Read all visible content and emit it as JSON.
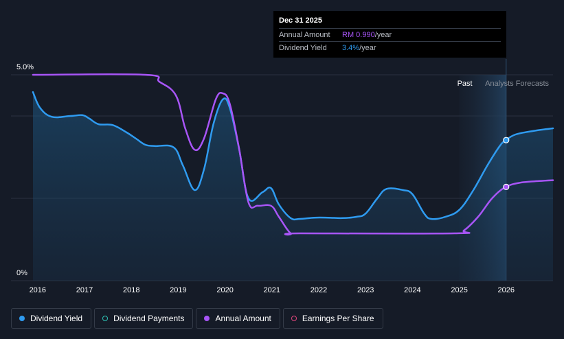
{
  "chart_data": {
    "type": "line",
    "x_axis": {
      "min": 2015.9,
      "max": 2027.0,
      "ticks": [
        "2016",
        "2017",
        "2018",
        "2019",
        "2020",
        "2021",
        "2022",
        "2023",
        "2024",
        "2025",
        "2026"
      ]
    },
    "y_axis": {
      "min": 0,
      "max": 5.0,
      "tick_labels": [
        {
          "value": 5.0,
          "label": "5.0%"
        },
        {
          "value": 0,
          "label": "0%"
        }
      ]
    },
    "regions": {
      "past_label": "Past",
      "forecast_label": "Analysts Forecasts",
      "forecast_start": 2025.0,
      "forecast_marker": 2026.0
    },
    "series": [
      {
        "name": "Dividend Yield",
        "color": "#2f9bf0",
        "filled": true,
        "points": [
          [
            2015.9,
            4.58
          ],
          [
            2016.05,
            4.2
          ],
          [
            2016.3,
            3.98
          ],
          [
            2016.7,
            4.0
          ],
          [
            2016.95,
            4.02
          ],
          [
            2017.1,
            3.94
          ],
          [
            2017.3,
            3.8
          ],
          [
            2017.6,
            3.78
          ],
          [
            2017.9,
            3.6
          ],
          [
            2018.1,
            3.45
          ],
          [
            2018.3,
            3.3
          ],
          [
            2018.5,
            3.27
          ],
          [
            2018.9,
            3.24
          ],
          [
            2019.1,
            2.8
          ],
          [
            2019.35,
            2.2
          ],
          [
            2019.55,
            2.7
          ],
          [
            2019.75,
            3.8
          ],
          [
            2019.95,
            4.4
          ],
          [
            2020.1,
            4.2
          ],
          [
            2020.3,
            3.2
          ],
          [
            2020.5,
            2.0
          ],
          [
            2020.8,
            2.15
          ],
          [
            2020.98,
            2.25
          ],
          [
            2021.15,
            1.85
          ],
          [
            2021.4,
            1.52
          ],
          [
            2021.6,
            1.5
          ],
          [
            2021.9,
            1.53
          ],
          [
            2022.2,
            1.53
          ],
          [
            2022.5,
            1.52
          ],
          [
            2022.8,
            1.55
          ],
          [
            2023.0,
            1.63
          ],
          [
            2023.25,
            2.0
          ],
          [
            2023.45,
            2.23
          ],
          [
            2023.8,
            2.2
          ],
          [
            2024.0,
            2.1
          ],
          [
            2024.25,
            1.63
          ],
          [
            2024.4,
            1.5
          ],
          [
            2024.7,
            1.55
          ],
          [
            2025.0,
            1.72
          ],
          [
            2025.3,
            2.2
          ],
          [
            2025.6,
            2.8
          ],
          [
            2025.85,
            3.25
          ],
          [
            2025.98,
            3.4
          ],
          [
            2026.2,
            3.55
          ],
          [
            2026.6,
            3.64
          ],
          [
            2027.0,
            3.7
          ]
        ]
      },
      {
        "name": "Annual Amount",
        "color": "#a855f7",
        "filled": false,
        "points": [
          [
            2015.9,
            5.0
          ],
          [
            2018.3,
            5.0
          ],
          [
            2018.6,
            4.83
          ],
          [
            2018.95,
            4.5
          ],
          [
            2019.15,
            3.7
          ],
          [
            2019.35,
            3.18
          ],
          [
            2019.55,
            3.45
          ],
          [
            2019.8,
            4.4
          ],
          [
            2019.95,
            4.55
          ],
          [
            2020.1,
            4.3
          ],
          [
            2020.3,
            3.2
          ],
          [
            2020.5,
            1.9
          ],
          [
            2020.7,
            1.82
          ],
          [
            2020.98,
            1.82
          ],
          [
            2021.15,
            1.55
          ],
          [
            2021.4,
            1.15
          ],
          [
            2021.6,
            1.15
          ],
          [
            2024.9,
            1.15
          ],
          [
            2025.1,
            1.22
          ],
          [
            2025.4,
            1.55
          ],
          [
            2025.7,
            2.0
          ],
          [
            2025.98,
            2.27
          ],
          [
            2026.3,
            2.38
          ],
          [
            2026.7,
            2.42
          ],
          [
            2027.0,
            2.44
          ]
        ]
      }
    ],
    "tooltip": {
      "date": "Dec 31 2025",
      "rows": [
        {
          "label": "Annual Amount",
          "value": "RM 0.990",
          "unit": "/year"
        },
        {
          "label": "Dividend Yield",
          "value": "3.4%",
          "unit": "/year"
        }
      ]
    }
  },
  "legend": [
    {
      "label": "Dividend Yield",
      "color": "#2f9bf0",
      "hollow": false
    },
    {
      "label": "Dividend Payments",
      "color": "#2ec4b6",
      "hollow": true
    },
    {
      "label": "Annual Amount",
      "color": "#a855f7",
      "hollow": false
    },
    {
      "label": "Earnings Per Share",
      "color": "#e0467c",
      "hollow": true
    }
  ]
}
